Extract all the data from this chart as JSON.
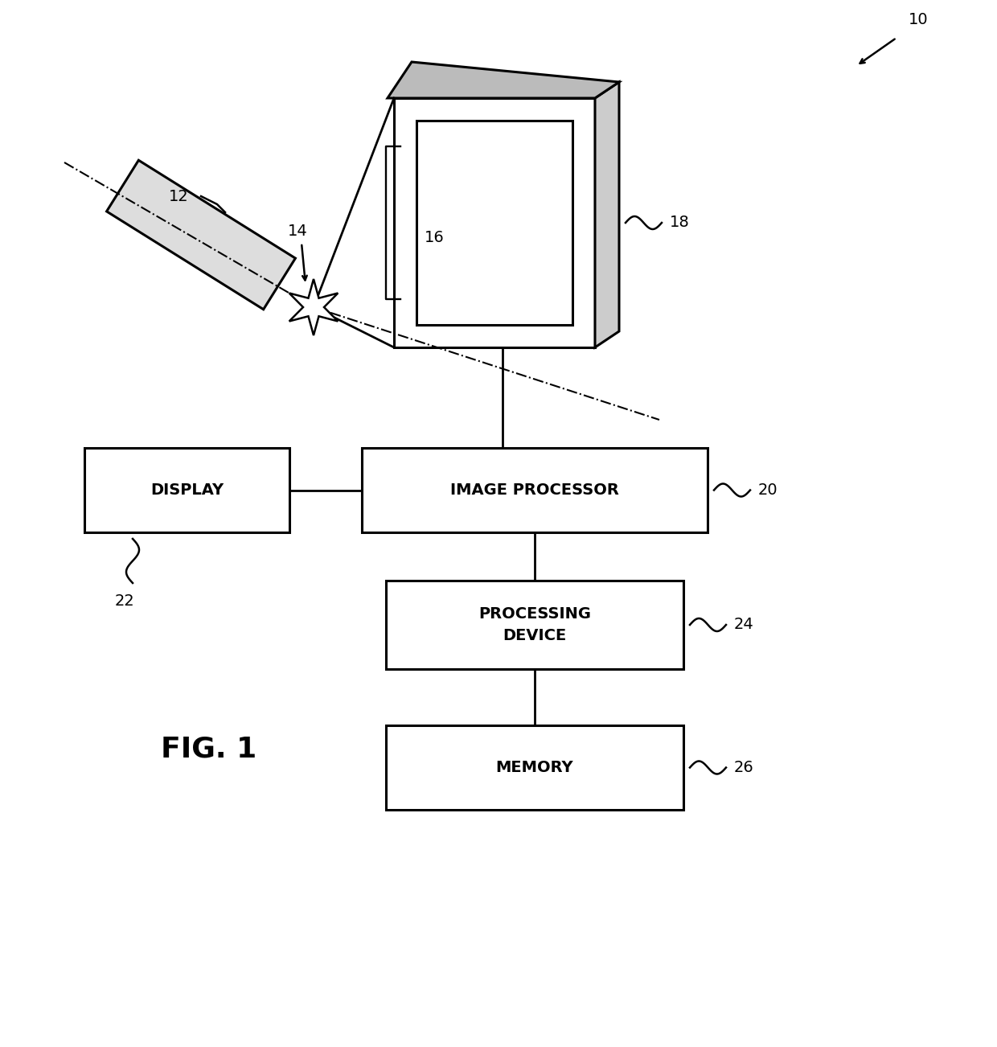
{
  "bg_color": "#ffffff",
  "line_color": "#000000",
  "label_10": "10",
  "label_12": "12",
  "label_14": "14",
  "label_16": "16",
  "label_18": "18",
  "label_20": "20",
  "label_22": "22",
  "label_24": "24",
  "label_26": "26",
  "fig_label": "FIG. 1",
  "box_display_label": "DISPLAY",
  "box_ip_label": "IMAGE PROCESSOR",
  "box_pd_label": "PROCESSING\nDEVICE",
  "box_mem_label": "MEMORY"
}
